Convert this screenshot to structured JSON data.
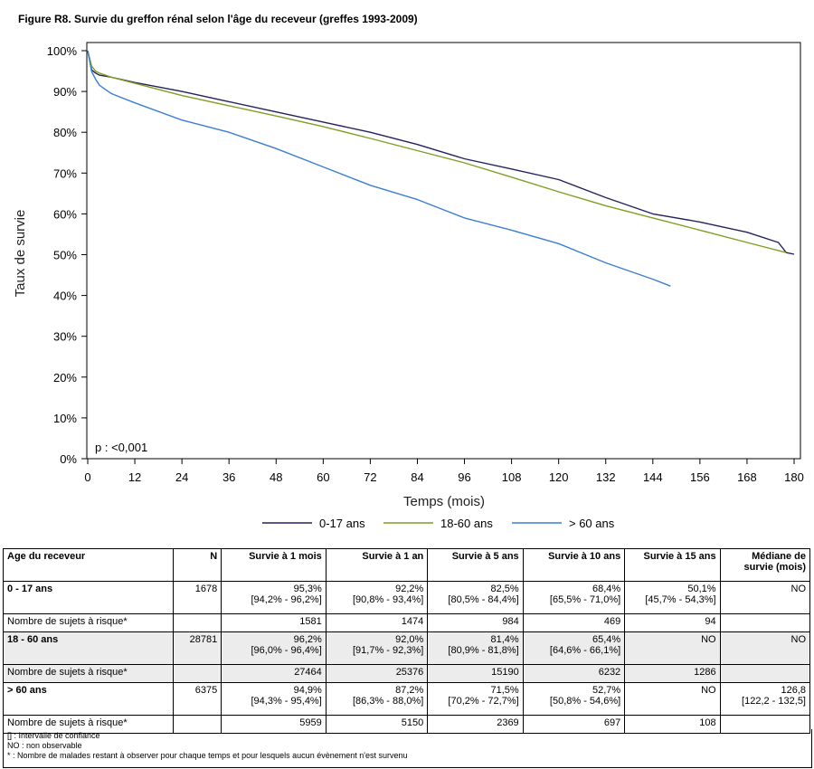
{
  "figure_title": "Figure R8. Survie du greffon rénal selon l'âge du receveur (greffes 1993-2009)",
  "chart_data": {
    "type": "line",
    "xlabel": "Temps (mois)",
    "ylabel": "Taux de survie",
    "xlim": [
      0,
      180
    ],
    "ylim": [
      0,
      100
    ],
    "xticks": [
      0,
      12,
      24,
      36,
      48,
      60,
      72,
      84,
      96,
      108,
      120,
      132,
      144,
      156,
      168,
      180
    ],
    "yticks": [
      "0%",
      "10%",
      "20%",
      "30%",
      "40%",
      "50%",
      "60%",
      "70%",
      "80%",
      "90%",
      "100%"
    ],
    "annotation": "p : <0,001",
    "legend_position": "bottom",
    "grid": false,
    "series": [
      {
        "name": "0-17 ans",
        "color": "#26215e",
        "x": [
          0,
          1,
          2,
          3,
          6,
          12,
          24,
          36,
          48,
          60,
          72,
          84,
          96,
          108,
          120,
          132,
          144,
          156,
          168,
          176,
          178,
          180
        ],
        "y": [
          100,
          95.3,
          94.5,
          94,
          93.5,
          92.2,
          90,
          87.5,
          85,
          82.5,
          80,
          77,
          73.5,
          71,
          68.4,
          64,
          60,
          58,
          55.5,
          53,
          50.5,
          50.1
        ]
      },
      {
        "name": "18-60 ans",
        "color": "#7f9e22",
        "x": [
          0,
          1,
          2,
          3,
          6,
          12,
          24,
          36,
          48,
          60,
          72,
          84,
          96,
          108,
          120,
          132,
          144,
          156,
          168,
          178
        ],
        "y": [
          100,
          96.2,
          95,
          94.5,
          93.5,
          92,
          89,
          86.5,
          84,
          81.4,
          78.5,
          75.5,
          72.5,
          69,
          65.4,
          62,
          59,
          56,
          53,
          50.5
        ]
      },
      {
        "name": "> 60 ans",
        "color": "#3a7fd4",
        "x": [
          0,
          1,
          2,
          3,
          6,
          12,
          24,
          36,
          48,
          60,
          72,
          84,
          96,
          108,
          120,
          132,
          144,
          148.5
        ],
        "y": [
          100,
          94.9,
          93,
          91.5,
          89.5,
          87.2,
          83,
          80,
          76,
          71.5,
          67,
          63.5,
          59,
          56,
          52.7,
          48,
          44,
          42.3
        ]
      }
    ]
  },
  "table": {
    "headers": [
      "Age du receveur",
      "N",
      "Survie à 1 mois",
      "Survie à 1 an",
      "Survie à 5 ans",
      "Survie à 10 ans",
      "Survie à 15 ans",
      "Médiane de survie (mois)"
    ],
    "groups": [
      {
        "label": "0 - 17 ans",
        "n": "1678",
        "cells": [
          {
            "v": "95,3%",
            "ci": "[94,2% - 96,2%]"
          },
          {
            "v": "92,2%",
            "ci": "[90,8% - 93,4%]"
          },
          {
            "v": "82,5%",
            "ci": "[80,5% - 84,4%]"
          },
          {
            "v": "68,4%",
            "ci": "[65,5% - 71,0%]"
          },
          {
            "v": "50,1%",
            "ci": "[45,7% - 54,3%]"
          },
          {
            "v": "NO",
            "ci": ""
          }
        ],
        "risk_label": "Nombre de sujets à risque*",
        "risk": [
          "1581",
          "1474",
          "984",
          "469",
          "94",
          ""
        ]
      },
      {
        "label": "18 - 60 ans",
        "n": "28781",
        "cells": [
          {
            "v": "96,2%",
            "ci": "[96,0% - 96,4%]"
          },
          {
            "v": "92,0%",
            "ci": "[91,7% - 92,3%]"
          },
          {
            "v": "81,4%",
            "ci": "[80,9% - 81,8%]"
          },
          {
            "v": "65,4%",
            "ci": "[64,6% - 66,1%]"
          },
          {
            "v": "NO",
            "ci": ""
          },
          {
            "v": "NO",
            "ci": ""
          }
        ],
        "risk_label": "Nombre de sujets à risque*",
        "risk": [
          "27464",
          "25376",
          "15190",
          "6232",
          "1286",
          ""
        ]
      },
      {
        "label": "> 60 ans",
        "n": "6375",
        "cells": [
          {
            "v": "94,9%",
            "ci": "[94,3% - 95,4%]"
          },
          {
            "v": "87,2%",
            "ci": "[86,3% - 88,0%]"
          },
          {
            "v": "71,5%",
            "ci": "[70,2% - 72,7%]"
          },
          {
            "v": "52,7%",
            "ci": "[50,8% - 54,6%]"
          },
          {
            "v": "NO",
            "ci": ""
          },
          {
            "v": "126,8",
            "ci": "[122,2 - 132,5]"
          }
        ],
        "risk_label": "Nombre de sujets à risque*",
        "risk": [
          "5959",
          "5150",
          "2369",
          "697",
          "108",
          ""
        ]
      }
    ],
    "notes": [
      "[] : Intervalle de confiance",
      "NO : non observable",
      "* : Nombre de malades restant à observer pour chaque temps et pour lesquels aucun évènement n'est survenu"
    ]
  }
}
